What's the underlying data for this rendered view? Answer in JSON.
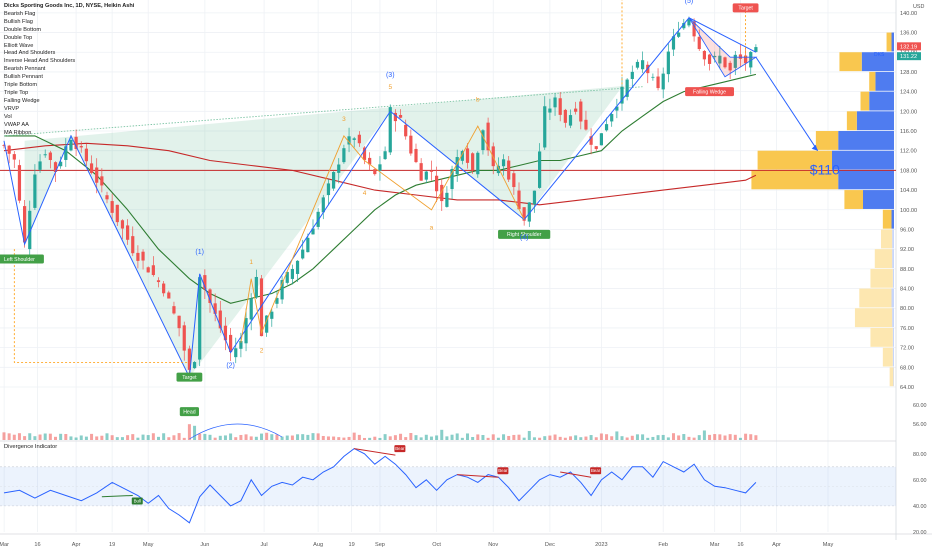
{
  "chart_data": {
    "type": "candlestick",
    "title": "Dicks Sporting Goods Inc, 1D, NYSE, Heikin Ashi",
    "legend_placement": "top-left",
    "indicators": [
      "Bearish Flag",
      "Bullish Flag",
      "Double Bottom",
      "Double Top",
      "Elliott Wave",
      "Head And Shoulders",
      "Inverse Head And Shoulders",
      "Bearish Pennant",
      "Bullish Pennant",
      "Triple Bottom",
      "Triple Top",
      "Falling Wedge",
      "VRVP",
      "Vol",
      "VWAP AA",
      "MA Ribbon"
    ],
    "currency": "USD",
    "symbol_tag": "DKS",
    "price_tags": [
      "132.19",
      "131.22"
    ],
    "x_labels": [
      {
        "t": 0.03,
        "label": "Mar"
      },
      {
        "t": 6.5,
        "label": "16"
      },
      {
        "t": 14,
        "label": "Apr"
      },
      {
        "t": 21,
        "label": "19"
      },
      {
        "t": 28,
        "label": "May"
      },
      {
        "t": 39,
        "label": "Jun"
      },
      {
        "t": 50.5,
        "label": "Jul"
      },
      {
        "t": 61,
        "label": "Aug"
      },
      {
        "t": 67.5,
        "label": "19"
      },
      {
        "t": 73,
        "label": "Sep"
      },
      {
        "t": 84,
        "label": "Oct"
      },
      {
        "t": 95,
        "label": "Nov"
      },
      {
        "t": 106,
        "label": "Dec"
      },
      {
        "t": 116,
        "label": "2023"
      },
      {
        "t": 128,
        "label": "Feb"
      },
      {
        "t": 138,
        "label": "Mar"
      },
      {
        "t": 143,
        "label": "16"
      },
      {
        "t": 150,
        "label": "Apr"
      },
      {
        "t": 160,
        "label": "May"
      }
    ],
    "price_axis": {
      "min": 64,
      "max": 142,
      "ticks": [
        64,
        68,
        72,
        76,
        80,
        84,
        88,
        92,
        96,
        100,
        104,
        108,
        112,
        116,
        120,
        124,
        128,
        132,
        136,
        140
      ]
    },
    "volume_axis_ticks": [
      60,
      56
    ],
    "osc_axis": {
      "min": 23,
      "max": 86,
      "ticks": [
        80,
        60,
        40,
        20
      ]
    },
    "grid": true,
    "price_path": [
      [
        0,
        113
      ],
      [
        2,
        110
      ],
      [
        4,
        93
      ],
      [
        6,
        108
      ],
      [
        8,
        112
      ],
      [
        10,
        108
      ],
      [
        13,
        115
      ],
      [
        16,
        110
      ],
      [
        19,
        104
      ],
      [
        22,
        98
      ],
      [
        25,
        92
      ],
      [
        28,
        88
      ],
      [
        31,
        84
      ],
      [
        34,
        76
      ],
      [
        36,
        67
      ],
      [
        37,
        70
      ],
      [
        38,
        87
      ],
      [
        40,
        81
      ],
      [
        42,
        76
      ],
      [
        44,
        71
      ],
      [
        46,
        73
      ],
      [
        48,
        83
      ],
      [
        49,
        86
      ],
      [
        50,
        75
      ],
      [
        52,
        80
      ],
      [
        54,
        85
      ],
      [
        56,
        88
      ],
      [
        58,
        92
      ],
      [
        60,
        97
      ],
      [
        62,
        102
      ],
      [
        64,
        107
      ],
      [
        66,
        113
      ],
      [
        68,
        115
      ],
      [
        70,
        110
      ],
      [
        72,
        107
      ],
      [
        74,
        112
      ],
      [
        75,
        120
      ],
      [
        77,
        118
      ],
      [
        79,
        112
      ],
      [
        81,
        107
      ],
      [
        83,
        108
      ],
      [
        85,
        101
      ],
      [
        87,
        108
      ],
      [
        89,
        113
      ],
      [
        91,
        108
      ],
      [
        93,
        117
      ],
      [
        95,
        108
      ],
      [
        97,
        110
      ],
      [
        99,
        104
      ],
      [
        101,
        98
      ],
      [
        103,
        104
      ],
      [
        104,
        112
      ],
      [
        105,
        120
      ],
      [
        107,
        122
      ],
      [
        109,
        118
      ],
      [
        111,
        121
      ],
      [
        113,
        116
      ],
      [
        115,
        112
      ],
      [
        116,
        116
      ],
      [
        118,
        120
      ],
      [
        120,
        124
      ],
      [
        122,
        128
      ],
      [
        124,
        130
      ],
      [
        126,
        126
      ],
      [
        127,
        124
      ],
      [
        129,
        132
      ],
      [
        131,
        137
      ],
      [
        133,
        139
      ],
      [
        135,
        133
      ],
      [
        137,
        130
      ],
      [
        139,
        131
      ],
      [
        141,
        128
      ],
      [
        142,
        131
      ],
      [
        144,
        130
      ],
      [
        146,
        132
      ]
    ],
    "moving_averages": [
      {
        "name": "MA-long",
        "color": "#c62828",
        "points": [
          [
            0,
            112
          ],
          [
            8,
            113
          ],
          [
            16,
            113.5
          ],
          [
            24,
            113
          ],
          [
            32,
            112
          ],
          [
            40,
            110
          ],
          [
            48,
            109
          ],
          [
            56,
            108
          ],
          [
            64,
            106
          ],
          [
            72,
            104
          ],
          [
            80,
            103
          ],
          [
            88,
            102
          ],
          [
            96,
            102
          ],
          [
            104,
            101
          ],
          [
            112,
            102
          ],
          [
            120,
            103
          ],
          [
            128,
            104
          ],
          [
            136,
            105
          ],
          [
            144,
            106
          ],
          [
            146,
            107
          ]
        ]
      },
      {
        "name": "MA-medium",
        "color": "#2e7d32",
        "points": [
          [
            0,
            115
          ],
          [
            6,
            115
          ],
          [
            12,
            112
          ],
          [
            18,
            107
          ],
          [
            24,
            100
          ],
          [
            30,
            92
          ],
          [
            36,
            86
          ],
          [
            40,
            83
          ],
          [
            44,
            81
          ],
          [
            48,
            82
          ],
          [
            52,
            83
          ],
          [
            56,
            85
          ],
          [
            60,
            88
          ],
          [
            64,
            92
          ],
          [
            68,
            96
          ],
          [
            72,
            100
          ],
          [
            76,
            103
          ],
          [
            80,
            105
          ],
          [
            84,
            106
          ],
          [
            88,
            107
          ],
          [
            92,
            108
          ],
          [
            96,
            108
          ],
          [
            100,
            109
          ],
          [
            104,
            110
          ],
          [
            108,
            110
          ],
          [
            112,
            111
          ],
          [
            116,
            112
          ],
          [
            120,
            116
          ],
          [
            124,
            119
          ],
          [
            128,
            122
          ],
          [
            132,
            124
          ],
          [
            136,
            125
          ],
          [
            140,
            126
          ],
          [
            144,
            127
          ],
          [
            146,
            127.5
          ]
        ]
      }
    ],
    "horizontal_levels": [
      {
        "price": 108,
        "color": "#c62828"
      }
    ],
    "neckline": [
      [
        0,
        115
      ],
      [
        124,
        125
      ]
    ],
    "head_shoulders_fill": [
      [
        4,
        114
      ],
      [
        4,
        93
      ],
      [
        13,
        115
      ],
      [
        36,
        66
      ],
      [
        75,
        120
      ],
      [
        101,
        98
      ],
      [
        120,
        125
      ],
      [
        124,
        125.5
      ]
    ],
    "wave_lines_blue": [
      [
        [
          0,
          114
        ],
        [
          4,
          93
        ],
        [
          13,
          115
        ],
        [
          36,
          66
        ]
      ],
      [
        [
          36,
          66
        ],
        [
          38,
          87
        ],
        [
          44,
          71
        ],
        [
          75,
          120
        ],
        [
          101,
          98
        ],
        [
          133,
          139
        ],
        [
          146,
          132
        ]
      ]
    ],
    "wave_lines_orange": [
      [
        [
          46,
          73
        ],
        [
          48,
          86
        ],
        [
          50,
          75
        ],
        [
          66,
          115
        ],
        [
          70,
          110
        ],
        [
          83,
          100
        ],
        [
          92,
          117
        ],
        [
          101,
          98
        ]
      ]
    ],
    "falling_wedge": [
      [
        133,
        139
      ],
      [
        141,
        131
      ],
      [
        146,
        131
      ],
      [
        140,
        127
      ],
      [
        133,
        139
      ]
    ],
    "projection_arrow": [
      [
        146,
        131
      ],
      [
        158,
        112
      ]
    ],
    "projection_label": "$110",
    "target_dashes": [
      [
        [
          144,
          131
        ],
        [
          144,
          141
        ]
      ],
      [
        [
          120,
          160
        ],
        [
          120,
          125
        ]
      ]
    ],
    "annotations": [
      {
        "t": 3,
        "price": 90,
        "text": "Left Shoulder",
        "style": "green"
      },
      {
        "t": 36,
        "price": 66,
        "text": "Target",
        "style": "green"
      },
      {
        "t": 36,
        "price": 59,
        "text": "Head",
        "style": "green"
      },
      {
        "t": 101,
        "price": 95,
        "text": "Right Shoulder",
        "style": "green"
      },
      {
        "t": 144,
        "price": 141,
        "text": "Target",
        "style": "red"
      },
      {
        "t": 137,
        "price": 124,
        "text": "Falling Wedge",
        "style": "red"
      }
    ],
    "wave_labels_blue": [
      {
        "t": 38,
        "price": 91,
        "text": "(1)"
      },
      {
        "t": 44,
        "price": 68,
        "text": "(2)"
      },
      {
        "t": 75,
        "price": 127,
        "text": "(3)"
      },
      {
        "t": 101,
        "price": 94,
        "text": "(4)"
      },
      {
        "t": 133,
        "price": 142,
        "text": "(5)"
      }
    ],
    "wave_labels_orange": [
      {
        "t": 48,
        "price": 89,
        "text": "1"
      },
      {
        "t": 50,
        "price": 71,
        "text": "2"
      },
      {
        "t": 66,
        "price": 118,
        "text": "3"
      },
      {
        "t": 70,
        "price": 103,
        "text": "4"
      },
      {
        "t": 75,
        "price": 124.5,
        "text": "5"
      },
      {
        "t": 83,
        "price": 96,
        "text": "a"
      },
      {
        "t": 92,
        "price": 122,
        "text": "b"
      }
    ],
    "vrvp_rows": [
      {
        "price": 134,
        "blue": 4,
        "yellow": 8
      },
      {
        "price": 130,
        "blue": 52,
        "yellow": 36
      },
      {
        "price": 126,
        "blue": 30,
        "yellow": 10
      },
      {
        "price": 122,
        "blue": 40,
        "yellow": 14
      },
      {
        "price": 118,
        "blue": 60,
        "yellow": 16
      },
      {
        "price": 114,
        "blue": 90,
        "yellow": 36
      },
      {
        "price": 110,
        "blue": 100,
        "yellow": 120
      },
      {
        "price": 106,
        "blue": 90,
        "yellow": 140
      },
      {
        "price": 102,
        "blue": 50,
        "yellow": 30
      },
      {
        "price": 98,
        "blue": 4,
        "yellow": 14
      },
      {
        "price": 94,
        "blue": 3,
        "yellow": 18
      },
      {
        "price": 90,
        "blue": 3,
        "yellow": 28
      },
      {
        "price": 86,
        "blue": 2,
        "yellow": 36
      },
      {
        "price": 82,
        "blue": 4,
        "yellow": 52
      },
      {
        "price": 78,
        "blue": 3,
        "yellow": 60
      },
      {
        "price": 74,
        "blue": 2,
        "yellow": 36
      },
      {
        "price": 70,
        "blue": 2,
        "yellow": 16
      },
      {
        "price": 66,
        "blue": 1,
        "yellow": 6
      }
    ],
    "oscillator": {
      "title": "Divergence Indicator",
      "band": [
        40,
        70
      ],
      "values": [
        [
          0,
          50
        ],
        [
          3,
          52
        ],
        [
          6,
          46
        ],
        [
          9,
          52
        ],
        [
          12,
          48
        ],
        [
          15,
          44
        ],
        [
          18,
          50
        ],
        [
          21,
          58
        ],
        [
          24,
          52
        ],
        [
          26,
          48
        ],
        [
          28,
          42
        ],
        [
          30,
          48
        ],
        [
          32,
          38
        ],
        [
          34,
          33
        ],
        [
          36,
          27
        ],
        [
          38,
          47
        ],
        [
          40,
          56
        ],
        [
          42,
          48
        ],
        [
          44,
          40
        ],
        [
          46,
          44
        ],
        [
          48,
          60
        ],
        [
          50,
          48
        ],
        [
          52,
          55
        ],
        [
          54,
          58
        ],
        [
          56,
          56
        ],
        [
          58,
          62
        ],
        [
          60,
          60
        ],
        [
          62,
          66
        ],
        [
          64,
          70
        ],
        [
          66,
          78
        ],
        [
          68,
          84
        ],
        [
          70,
          80
        ],
        [
          72,
          72
        ],
        [
          74,
          78
        ],
        [
          76,
          72
        ],
        [
          78,
          64
        ],
        [
          80,
          54
        ],
        [
          82,
          60
        ],
        [
          84,
          52
        ],
        [
          86,
          60
        ],
        [
          88,
          64
        ],
        [
          90,
          62
        ],
        [
          92,
          58
        ],
        [
          94,
          64
        ],
        [
          96,
          62
        ],
        [
          98,
          54
        ],
        [
          100,
          44
        ],
        [
          102,
          52
        ],
        [
          104,
          60
        ],
        [
          106,
          64
        ],
        [
          108,
          62
        ],
        [
          110,
          66
        ],
        [
          112,
          58
        ],
        [
          114,
          48
        ],
        [
          116,
          60
        ],
        [
          118,
          66
        ],
        [
          120,
          60
        ],
        [
          122,
          70
        ],
        [
          124,
          70
        ],
        [
          126,
          62
        ],
        [
          128,
          74
        ],
        [
          130,
          70
        ],
        [
          132,
          66
        ],
        [
          134,
          72
        ],
        [
          136,
          60
        ],
        [
          138,
          55
        ],
        [
          140,
          54
        ],
        [
          142,
          52
        ],
        [
          144,
          50
        ],
        [
          146,
          58
        ]
      ],
      "divergences": [
        {
          "from": [
            19,
            47
          ],
          "to": [
            25,
            48
          ],
          "text": "Bull",
          "color": "#2e7d32"
        },
        {
          "from": [
            68,
            84
          ],
          "to": [
            76,
            79
          ],
          "text": "Bear",
          "color": "#c62828"
        },
        {
          "from": [
            88,
            64
          ],
          "to": [
            96,
            62
          ],
          "text": "Bear",
          "color": "#c62828"
        },
        {
          "from": [
            108,
            66
          ],
          "to": [
            114,
            62
          ],
          "text": "Bear",
          "color": "#c62828"
        }
      ]
    }
  }
}
